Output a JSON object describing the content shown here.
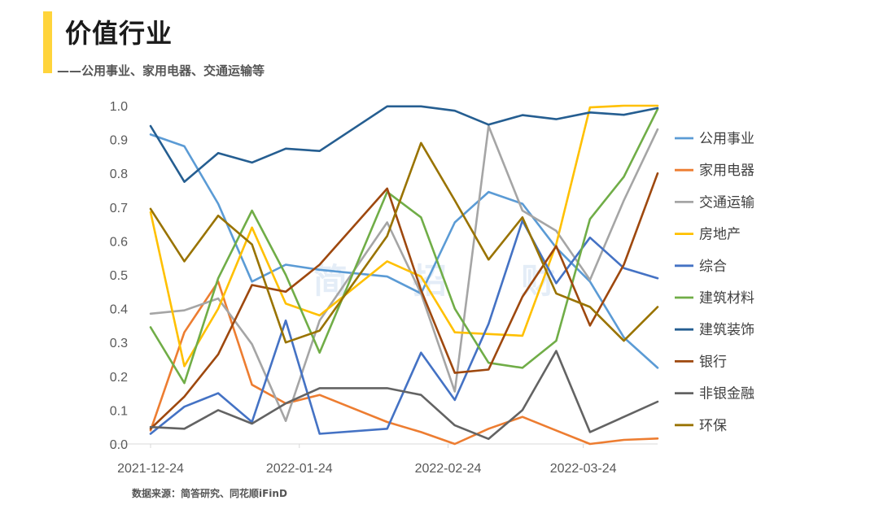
{
  "header": {
    "title": "价值行业",
    "subtitle": "——公用事业、家用电器、交通运输等"
  },
  "footer": {
    "source": "数据来源：简答研究、同花顺iFinD"
  },
  "watermark": [
    "简",
    "招",
    "财"
  ],
  "chart_data": {
    "type": "line",
    "title": "",
    "xlabel": "",
    "ylabel": "",
    "ylim": [
      0,
      1
    ],
    "yticks": [
      0.0,
      0.1,
      0.2,
      0.3,
      0.4,
      0.5,
      0.6,
      0.7,
      0.8,
      0.9,
      1.0
    ],
    "x": [
      "2021-12-24",
      "2021-12-31",
      "2022-01-07",
      "2022-01-14",
      "2022-01-21",
      "2022-01-28",
      "2022-02-04",
      "2022-02-11",
      "2022-02-18",
      "2022-02-25",
      "2022-03-04",
      "2022-03-11",
      "2022-03-18",
      "2022-03-25",
      "2022-04-01",
      "2022-04-08"
    ],
    "xtick_labels": [
      "2021-12-24",
      "2022-01-24",
      "2022-02-24",
      "2022-03-24"
    ],
    "xtick_positions": [
      0,
      4.4,
      8.8,
      12.8
    ],
    "grid": false,
    "legend_position": "right",
    "series": [
      {
        "name": "公用事业",
        "color": "#5B9BD5",
        "values": [
          0.915,
          0.88,
          0.71,
          0.48,
          0.53,
          0.515,
          null,
          0.495,
          0.445,
          0.655,
          0.745,
          0.71,
          0.58,
          0.48,
          0.315,
          0.225
        ]
      },
      {
        "name": "家用电器",
        "color": "#ED7D31",
        "values": [
          0.04,
          0.33,
          0.48,
          0.175,
          0.12,
          0.145,
          null,
          0.065,
          0.035,
          0.0,
          0.045,
          0.08,
          0.04,
          0.0,
          0.012,
          0.016
        ]
      },
      {
        "name": "交通运输",
        "color": "#A5A5A5",
        "values": [
          0.385,
          0.395,
          0.43,
          0.295,
          0.068,
          0.365,
          null,
          0.655,
          0.445,
          0.155,
          0.94,
          0.69,
          0.63,
          0.485,
          0.72,
          0.93
        ]
      },
      {
        "name": "房地产",
        "color": "#FFC000",
        "values": [
          0.685,
          0.23,
          0.4,
          0.64,
          0.415,
          0.38,
          null,
          0.54,
          0.495,
          0.33,
          0.325,
          0.32,
          0.59,
          0.995,
          1.0,
          1.0
        ]
      },
      {
        "name": "综合",
        "color": "#4472C4",
        "values": [
          0.03,
          0.11,
          0.15,
          0.065,
          0.365,
          0.03,
          null,
          0.045,
          0.27,
          0.13,
          0.355,
          0.66,
          0.475,
          0.61,
          0.52,
          0.49
        ]
      },
      {
        "name": "建筑材料",
        "color": "#70AD47",
        "values": [
          0.345,
          0.18,
          0.49,
          0.69,
          0.5,
          0.27,
          null,
          0.745,
          0.67,
          0.4,
          0.24,
          0.225,
          0.305,
          0.665,
          0.79,
          0.99
        ]
      },
      {
        "name": "建筑装饰",
        "color": "#255E91",
        "values": [
          0.94,
          0.775,
          0.86,
          0.832,
          0.873,
          0.866,
          null,
          0.998,
          0.998,
          0.985,
          0.944,
          0.972,
          0.96,
          0.98,
          0.973,
          0.993
        ]
      },
      {
        "name": "银行",
        "color": "#9E480E",
        "values": [
          0.045,
          0.14,
          0.265,
          0.47,
          0.45,
          0.53,
          null,
          0.755,
          0.455,
          0.21,
          0.22,
          0.435,
          0.585,
          0.35,
          0.53,
          0.8
        ]
      },
      {
        "name": "非银金融",
        "color": "#636363",
        "values": [
          0.05,
          0.045,
          0.1,
          0.06,
          0.12,
          0.165,
          null,
          0.165,
          0.145,
          0.055,
          0.015,
          0.1,
          0.275,
          0.035,
          0.08,
          0.125
        ]
      },
      {
        "name": "环保",
        "color": "#997300",
        "values": [
          0.695,
          0.54,
          0.675,
          0.59,
          0.3,
          0.335,
          null,
          0.615,
          0.89,
          0.72,
          0.545,
          0.67,
          0.445,
          0.405,
          0.305,
          0.405
        ]
      }
    ]
  }
}
